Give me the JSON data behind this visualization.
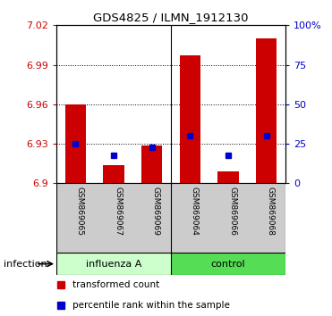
{
  "title": "GDS4825 / ILMN_1912130",
  "samples": [
    "GSM869065",
    "GSM869067",
    "GSM869069",
    "GSM869064",
    "GSM869066",
    "GSM869068"
  ],
  "groups": [
    "influenza A",
    "influenza A",
    "influenza A",
    "control",
    "control",
    "control"
  ],
  "group_labels": [
    "influenza A",
    "control"
  ],
  "influenza_color": "#ccffcc",
  "control_color": "#55dd55",
  "ylim": [
    6.9,
    7.02
  ],
  "yticks": [
    6.9,
    6.93,
    6.96,
    6.99,
    7.02
  ],
  "right_yticks": [
    0,
    25,
    50,
    75,
    100
  ],
  "right_ytick_labels": [
    "0",
    "25",
    "50",
    "75",
    "100%"
  ],
  "red_values": [
    6.96,
    6.914,
    6.929,
    6.997,
    6.909,
    7.01
  ],
  "blue_values": [
    6.93,
    6.921,
    6.927,
    6.936,
    6.921,
    6.936
  ],
  "red_color": "#cc0000",
  "blue_color": "#0000cc",
  "bar_width": 0.55,
  "sample_box_color": "#cccccc",
  "legend_red": "transformed count",
  "legend_blue": "percentile rank within the sample"
}
